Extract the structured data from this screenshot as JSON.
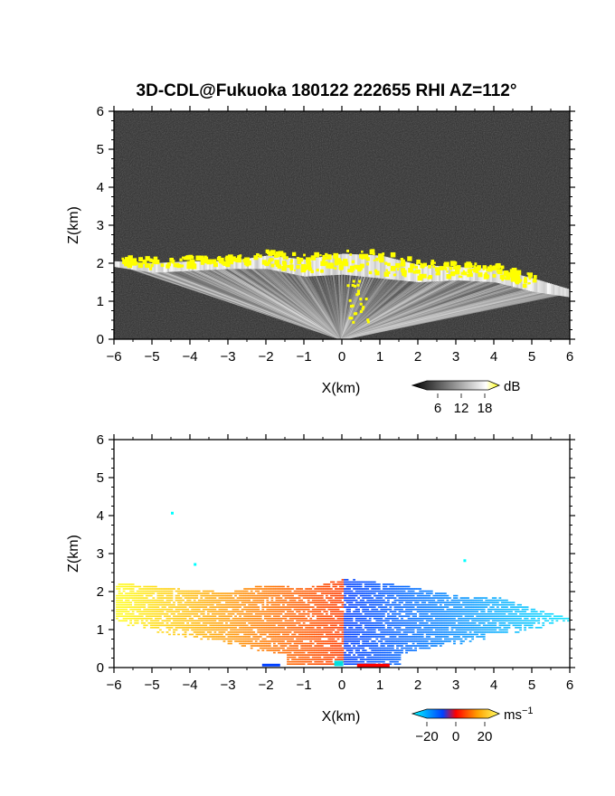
{
  "figure_title": "3D-CDL@Fukuoka 180122 222655 RHI AZ=112°",
  "chart_data": [
    {
      "type": "heatmap",
      "variable": "snr",
      "xlabel": "X(km)",
      "ylabel": "Z(km)",
      "xlim": [
        -6,
        6
      ],
      "ylim": [
        0,
        6
      ],
      "x_ticks": [
        -6,
        -5,
        -4,
        -3,
        -2,
        -1,
        0,
        1,
        2,
        3,
        4,
        5,
        6
      ],
      "y_ticks": [
        0,
        1,
        2,
        3,
        4,
        5,
        6
      ],
      "grid": false,
      "description_values": {
        "cloud_base_km": [
          [
            -6,
            2.0
          ],
          [
            -5,
            1.85
          ],
          [
            -4,
            1.9
          ],
          [
            -3,
            1.95
          ],
          [
            -2,
            1.95
          ],
          [
            -1,
            1.75
          ],
          [
            0,
            1.8
          ],
          [
            1,
            1.7
          ],
          [
            2,
            1.6
          ],
          [
            3,
            1.65
          ],
          [
            4,
            1.6
          ],
          [
            5,
            1.35
          ],
          [
            6,
            1.2
          ]
        ],
        "cloud_top_km": [
          [
            -6,
            2.05
          ],
          [
            -5,
            2.0
          ],
          [
            -4,
            2.05
          ],
          [
            -3,
            2.05
          ],
          [
            -2,
            2.2
          ],
          [
            -1,
            2.1
          ],
          [
            0,
            2.25
          ],
          [
            1,
            2.2
          ],
          [
            2,
            1.95
          ],
          [
            3,
            1.9
          ],
          [
            4,
            1.85
          ],
          [
            5,
            1.6
          ],
          [
            6,
            1.3
          ]
        ]
      },
      "colorbar": {
        "unit": "dB",
        "ticks": [
          "6",
          "12",
          "18"
        ],
        "range": [
          0,
          20
        ],
        "colors": [
          "#000000",
          "#ffffff",
          "#ffff00"
        ]
      }
    },
    {
      "type": "heatmap",
      "variable": "doppler_velocity",
      "xlabel": "X(km)",
      "ylabel": "Z(km)",
      "xlim": [
        -6,
        6
      ],
      "ylim": [
        0,
        6
      ],
      "x_ticks": [
        -6,
        -5,
        -4,
        -3,
        -2,
        -1,
        0,
        1,
        2,
        3,
        4,
        5,
        6
      ],
      "y_ticks": [
        0,
        1,
        2,
        3,
        4,
        5,
        6
      ],
      "grid": false,
      "description_values": {
        "top_of_echo_km": [
          [
            -6,
            2.2
          ],
          [
            -5,
            2.1
          ],
          [
            -4,
            2.0
          ],
          [
            -3,
            1.95
          ],
          [
            -2,
            2.15
          ],
          [
            -1,
            2.05
          ],
          [
            0,
            2.3
          ],
          [
            1,
            2.2
          ],
          [
            2,
            2.05
          ],
          [
            3,
            1.85
          ],
          [
            4,
            1.85
          ],
          [
            5,
            1.5
          ],
          [
            6,
            1.25
          ]
        ],
        "velocity_left_ms": 20,
        "velocity_right_ms": -20
      },
      "colorbar": {
        "unit": "ms",
        "unit_exponent": "−1",
        "ticks": [
          "−20",
          "0",
          "20"
        ],
        "range": [
          -30,
          30
        ],
        "colors": [
          "#00ffff",
          "#0040ff",
          "#ff0000",
          "#ffd000",
          "#ffff66"
        ]
      }
    }
  ]
}
